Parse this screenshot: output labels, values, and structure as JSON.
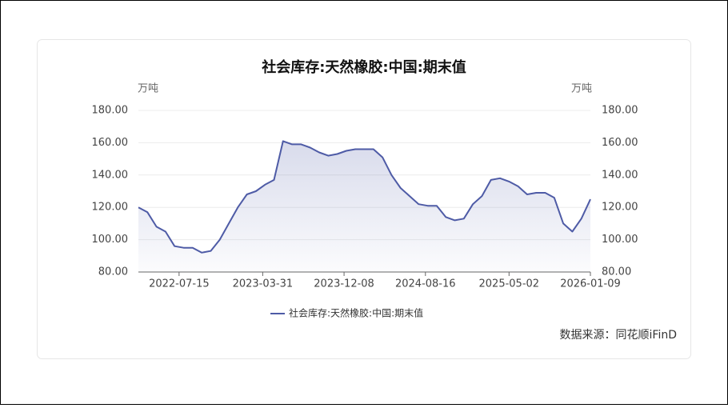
{
  "chart_data": {
    "type": "line",
    "title": "社会库存:天然橡胶:中国:期末值",
    "y_unit": "万吨",
    "y2_unit": "万吨",
    "source": "数据来源：同花顺iFinD",
    "x": [
      "2022-03-11",
      "2022-04-08",
      "2022-05-06",
      "2022-06-03",
      "2022-07-01",
      "2022-07-29",
      "2022-08-26",
      "2022-09-23",
      "2022-10-21",
      "2022-11-18",
      "2022-12-16",
      "2023-01-13",
      "2023-02-10",
      "2023-03-10",
      "2023-04-07",
      "2023-05-05",
      "2023-06-02",
      "2023-06-30",
      "2023-07-28",
      "2023-08-25",
      "2023-09-22",
      "2023-10-20",
      "2023-11-17",
      "2023-12-15",
      "2024-01-12",
      "2024-02-09",
      "2024-03-08",
      "2024-04-05",
      "2024-05-03",
      "2024-05-31",
      "2024-06-28",
      "2024-07-26",
      "2024-08-23",
      "2024-09-20",
      "2024-10-18",
      "2024-11-15",
      "2024-12-13",
      "2025-01-10",
      "2025-02-07",
      "2025-03-07",
      "2025-04-04",
      "2025-05-02",
      "2025-05-30",
      "2025-06-27",
      "2025-07-25",
      "2025-08-22",
      "2025-09-19",
      "2025-10-17",
      "2025-11-14",
      "2025-12-12",
      "2026-01-09"
    ],
    "series": [
      {
        "name": "社会库存:天然橡胶:中国:期末值",
        "color": "#4e5ba6",
        "values": [
          120,
          117,
          108,
          105,
          96,
          95,
          95,
          92,
          93,
          100,
          110,
          120,
          128,
          130,
          134,
          137,
          161,
          159,
          159,
          157,
          154,
          152,
          153,
          155,
          156,
          156,
          156,
          151,
          140,
          132,
          127,
          122,
          121,
          121,
          114,
          112,
          113,
          122,
          127,
          137,
          138,
          136,
          133,
          128,
          129,
          129,
          126,
          110,
          105,
          113,
          125
        ]
      }
    ],
    "xlim": [
      "2022-03-11",
      "2026-01-09"
    ],
    "xticks": [
      "2022-07-15",
      "2023-03-31",
      "2023-12-08",
      "2024-08-16",
      "2025-05-02",
      "2026-01-09"
    ],
    "ylim": [
      80,
      180
    ],
    "yticks": [
      {
        "value": 80,
        "label": "80.00"
      },
      {
        "value": 100,
        "label": "100.00"
      },
      {
        "value": 120,
        "label": "120.00"
      },
      {
        "value": 140,
        "label": "140.00"
      },
      {
        "value": 160,
        "label": "160.00"
      },
      {
        "value": 180,
        "label": "180.00"
      }
    ],
    "y2lim": [
      80,
      180
    ],
    "y2ticks": [
      {
        "value": 80,
        "label": "80.00"
      },
      {
        "value": 100,
        "label": "100.00"
      },
      {
        "value": 120,
        "label": "120.00"
      },
      {
        "value": 140,
        "label": "140.00"
      },
      {
        "value": 160,
        "label": "160.00"
      },
      {
        "value": 180,
        "label": "180.00"
      }
    ],
    "grid": true
  }
}
